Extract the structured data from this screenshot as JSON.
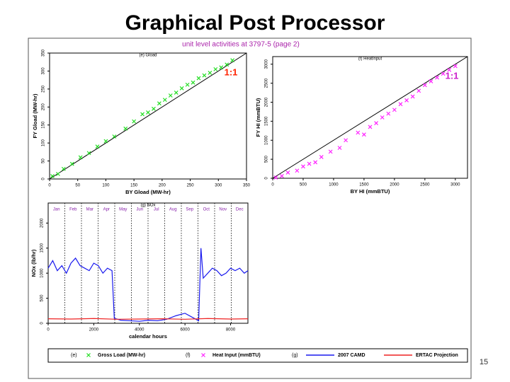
{
  "slide": {
    "title": "Graphical Post Processor",
    "figure_title": "unit level activities at 3797-5 (page 2)",
    "page_number": "15"
  },
  "chart_data": [
    {
      "type": "scatter",
      "title": "(e) Gload",
      "legend_label": "(e)",
      "x_label": "BY Gload (MW-hr)",
      "y_label": "FY Gload (MW-hr)",
      "annotation": "1:1",
      "annotation_color": "#ff2200",
      "xlim": [
        0,
        350
      ],
      "ylim": [
        0,
        350
      ],
      "xticks": [
        0,
        50,
        100,
        150,
        200,
        250,
        300,
        350
      ],
      "yticks": [
        0,
        50,
        100,
        150,
        200,
        250,
        300,
        350
      ],
      "x": [
        5,
        15,
        25,
        40,
        55,
        70,
        85,
        100,
        115,
        135,
        150,
        165,
        175,
        185,
        195,
        205,
        215,
        225,
        235,
        245,
        255,
        265,
        275,
        285,
        295,
        305,
        315,
        325
      ],
      "series": [
        {
          "name": "Gross Load (MW-hr)",
          "color": "#22dd22",
          "values": [
            8,
            14,
            28,
            42,
            60,
            72,
            90,
            105,
            118,
            140,
            160,
            180,
            185,
            195,
            210,
            220,
            232,
            240,
            252,
            262,
            268,
            280,
            288,
            295,
            305,
            310,
            318,
            330
          ]
        }
      ]
    },
    {
      "type": "scatter",
      "title": "(f) HeatInput",
      "legend_label": "(f)",
      "x_label": "BY HI (mmBTU)",
      "y_label": "FY HI (mmBTU)",
      "annotation": "1:1",
      "annotation_color": "#cc22cc",
      "xlim": [
        0,
        3200
      ],
      "ylim": [
        0,
        3200
      ],
      "xticks": [
        0,
        500,
        1000,
        1500,
        2000,
        2500,
        3000
      ],
      "yticks": [
        0,
        500,
        1000,
        1500,
        2000,
        2500,
        3000
      ],
      "x": [
        50,
        150,
        250,
        400,
        500,
        600,
        700,
        800,
        950,
        1100,
        1200,
        1400,
        1500,
        1600,
        1700,
        1800,
        1900,
        2000,
        2100,
        2200,
        2300,
        2400,
        2500,
        2600,
        2700,
        2800,
        2900,
        3000
      ],
      "series": [
        {
          "name": "Heat Input (mmBTU)",
          "color": "#ff22ff",
          "values": [
            20,
            60,
            150,
            200,
            310,
            380,
            420,
            560,
            700,
            800,
            1000,
            1200,
            1150,
            1350,
            1450,
            1600,
            1700,
            1800,
            1950,
            2050,
            2150,
            2300,
            2450,
            2550,
            2650,
            2750,
            2850,
            2950
          ]
        }
      ]
    },
    {
      "type": "line",
      "title": "(g) NOx",
      "legend_label": "(g)",
      "x_label": "calendar hours",
      "y_label": "NOx (lb/hr)",
      "month_labels": [
        "Jan",
        "Feb",
        "Mar",
        "Apr",
        "May",
        "Jun",
        "Jul",
        "Aug",
        "Sep",
        "Oct",
        "Nov",
        "Dec"
      ],
      "xlim": [
        0,
        8760
      ],
      "ylim": [
        0,
        2400
      ],
      "xticks": [
        0,
        2000,
        4000,
        6000,
        8000
      ],
      "yticks": [
        0,
        500,
        1000,
        1500,
        2000
      ],
      "series": [
        {
          "name": "2007 CAMD",
          "color": "#1a1aee",
          "x": [
            0,
            200,
            400,
            600,
            800,
            1000,
            1200,
            1400,
            1600,
            1800,
            2000,
            2200,
            2400,
            2600,
            2800,
            2900,
            3200,
            3600,
            4000,
            4400,
            4800,
            5200,
            5600,
            6000,
            6400,
            6600,
            6700,
            6800,
            7000,
            7200,
            7400,
            7600,
            7800,
            8000,
            8200,
            8400,
            8600,
            8760
          ],
          "values": [
            1100,
            1250,
            1050,
            1150,
            1000,
            1200,
            1300,
            1150,
            1100,
            1050,
            1200,
            1150,
            1000,
            1100,
            1050,
            100,
            60,
            50,
            40,
            60,
            50,
            80,
            150,
            200,
            100,
            50,
            1500,
            900,
            1000,
            1100,
            1050,
            950,
            1000,
            1100,
            1050,
            1100,
            1000,
            1050
          ]
        },
        {
          "name": "ERTAC Projection",
          "color": "#ee2222",
          "x": [
            0,
            1000,
            2000,
            3000,
            4000,
            5000,
            6000,
            7000,
            8000,
            8760
          ],
          "values": [
            90,
            85,
            95,
            80,
            85,
            90,
            80,
            95,
            85,
            90
          ]
        }
      ]
    }
  ]
}
